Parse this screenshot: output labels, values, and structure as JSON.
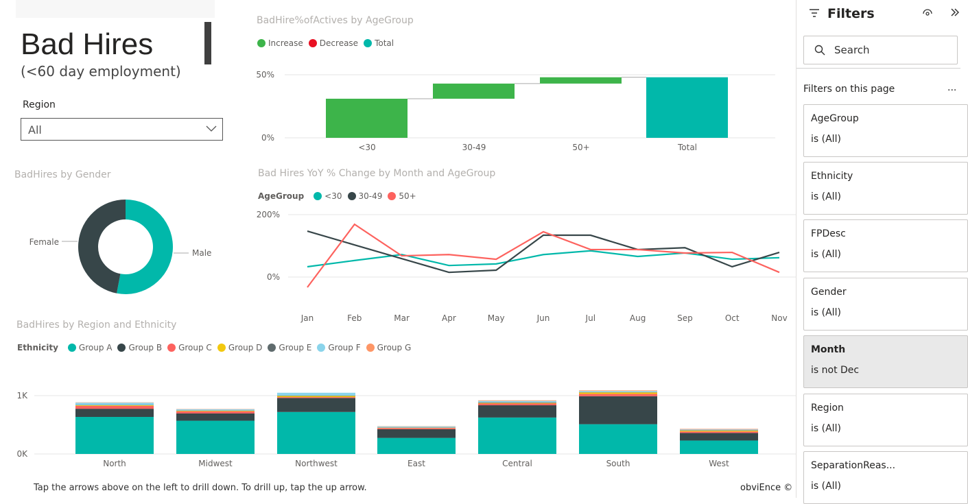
{
  "title": "Bad Hires",
  "subtitle": "(<60 day employment)",
  "slicer": {
    "label": "Region",
    "value": "All"
  },
  "waterfall": {
    "title": "BadHire%ofActives by AgeGroup",
    "legend": [
      "Increase",
      "Decrease",
      "Total"
    ],
    "colors": {
      "Increase": "#3db44a",
      "Decrease": "#e81123",
      "Total": "#01b8aa"
    },
    "chart_data": {
      "type": "bar",
      "categories": [
        "<30",
        "30-49",
        "50+",
        "Total"
      ],
      "increments": [
        31,
        12,
        5
      ],
      "total": 48,
      "yticks": [
        "0%",
        "50%"
      ],
      "ylim": [
        0,
        55
      ]
    }
  },
  "donut": {
    "title": "BadHires by Gender",
    "chart_data": {
      "type": "pie",
      "labels": [
        "Male",
        "Female"
      ],
      "values": [
        53,
        47
      ],
      "colors": [
        "#01b8aa",
        "#374649"
      ]
    }
  },
  "line": {
    "title": "Bad Hires YoY % Change by Month and AgeGroup",
    "legend_title": "AgeGroup",
    "chart_data": {
      "type": "line",
      "x": [
        "Jan",
        "Feb",
        "Mar",
        "Apr",
        "May",
        "Jun",
        "Jul",
        "Aug",
        "Sep",
        "Oct",
        "Nov"
      ],
      "yticks": [
        "0%",
        "200%"
      ],
      "ylim": [
        -80,
        230
      ],
      "series": [
        {
          "name": "<30",
          "color": "#01b8aa",
          "values": [
            33,
            53,
            72,
            37,
            42,
            72,
            84,
            66,
            77,
            57,
            62
          ]
        },
        {
          "name": "30-49",
          "color": "#374649",
          "values": [
            147,
            103,
            59,
            15,
            22,
            134,
            134,
            88,
            94,
            33,
            79
          ]
        },
        {
          "name": "50+",
          "color": "#fd625e",
          "values": [
            -33,
            169,
            68,
            72,
            57,
            145,
            88,
            88,
            77,
            79,
            15
          ]
        }
      ]
    }
  },
  "stacked": {
    "title": "BadHires by Region and Ethnicity",
    "legend_title": "Ethnicity",
    "chart_data": {
      "type": "bar",
      "categories": [
        "North",
        "Midwest",
        "Northwest",
        "East",
        "Central",
        "South",
        "West"
      ],
      "yticks": [
        "0K",
        "1K"
      ],
      "ylim": [
        0,
        1000
      ],
      "series": [
        {
          "name": "Group A",
          "color": "#01b8aa",
          "values": [
            635,
            570,
            720,
            275,
            625,
            510,
            230
          ]
        },
        {
          "name": "Group B",
          "color": "#374649",
          "values": [
            140,
            125,
            240,
            150,
            210,
            480,
            130
          ]
        },
        {
          "name": "Group C",
          "color": "#fd625e",
          "values": [
            50,
            35,
            15,
            20,
            30,
            40,
            25
          ]
        },
        {
          "name": "Group D",
          "color": "#f2c80f",
          "values": [
            10,
            10,
            20,
            5,
            10,
            25,
            15
          ]
        },
        {
          "name": "Group E",
          "color": "#5f6b6d",
          "values": [
            5,
            5,
            5,
            5,
            10,
            5,
            5
          ]
        },
        {
          "name": "Group F",
          "color": "#8ad4eb",
          "values": [
            40,
            20,
            50,
            15,
            25,
            20,
            15
          ]
        },
        {
          "name": "Group G",
          "color": "#fe9666",
          "values": [
            5,
            5,
            0,
            5,
            10,
            10,
            10
          ]
        }
      ]
    }
  },
  "footer": {
    "hint": "Tap the arrows above on the left to drill down. To drill up, tap the up arrow.",
    "brand": "obviEnce ©"
  },
  "filters": {
    "title": "Filters",
    "search_placeholder": "Search",
    "section": "Filters on this page",
    "more": "...",
    "cards": [
      {
        "name": "AgeGroup",
        "value": "is (All)"
      },
      {
        "name": "Ethnicity",
        "value": "is (All)"
      },
      {
        "name": "FPDesc",
        "value": "is (All)"
      },
      {
        "name": "Gender",
        "value": "is (All)"
      },
      {
        "name": "Month",
        "value": "is not Dec"
      },
      {
        "name": "Region",
        "value": "is (All)"
      },
      {
        "name": "SeparationReas...",
        "value": "is (All)"
      }
    ]
  }
}
